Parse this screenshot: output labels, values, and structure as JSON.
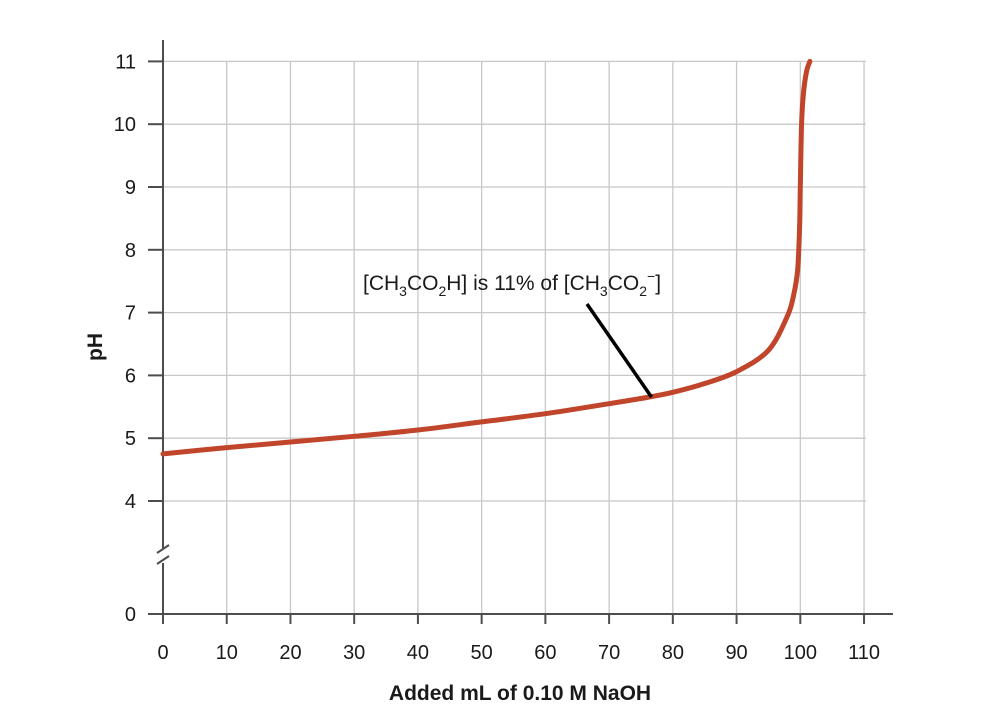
{
  "chart_data": {
    "type": "line",
    "title": "",
    "xlabel": "Added mL of 0.10 M NaOH",
    "ylabel": "pH",
    "xlim": [
      0,
      110
    ],
    "ylim": [
      0,
      11
    ],
    "y_axis_break": true,
    "grid": true,
    "x_ticks": [
      "0",
      "10",
      "20",
      "30",
      "40",
      "50",
      "60",
      "70",
      "80",
      "90",
      "100",
      "110"
    ],
    "y_ticks": [
      "0",
      "4",
      "5",
      "6",
      "7",
      "8",
      "9",
      "10",
      "11"
    ],
    "line_color": "#c0452b",
    "series": [
      {
        "x": [
          0,
          10,
          20,
          30,
          40,
          50,
          60,
          70,
          76,
          80,
          85,
          90,
          95,
          98,
          99,
          99.6,
          99.9,
          100,
          100.2,
          100.5,
          101,
          101.5
        ],
        "y": [
          4.75,
          4.85,
          4.94,
          5.03,
          5.13,
          5.26,
          5.39,
          5.55,
          5.65,
          5.73,
          5.87,
          6.06,
          6.4,
          6.95,
          7.3,
          7.7,
          8.4,
          9.0,
          10.0,
          10.5,
          10.85,
          11.0
        ]
      }
    ],
    "annotation": {
      "parts": [
        {
          "t": "[CH",
          "sub": false,
          "sup": false
        },
        {
          "t": "3",
          "sub": true,
          "sup": false
        },
        {
          "t": "CO",
          "sub": false,
          "sup": false
        },
        {
          "t": "2",
          "sub": true,
          "sup": false
        },
        {
          "t": "H] is 11% of [CH",
          "sub": false,
          "sup": false
        },
        {
          "t": "3",
          "sub": true,
          "sup": false
        },
        {
          "t": "CO",
          "sub": false,
          "sup": false
        },
        {
          "t": "2",
          "sub": true,
          "sup": false
        },
        {
          "t": "−",
          "sub": false,
          "sup": true
        },
        {
          "t": "]",
          "sub": false,
          "sup": false
        }
      ],
      "points_to": {
        "x": 76.5,
        "y": 5.67
      }
    }
  }
}
